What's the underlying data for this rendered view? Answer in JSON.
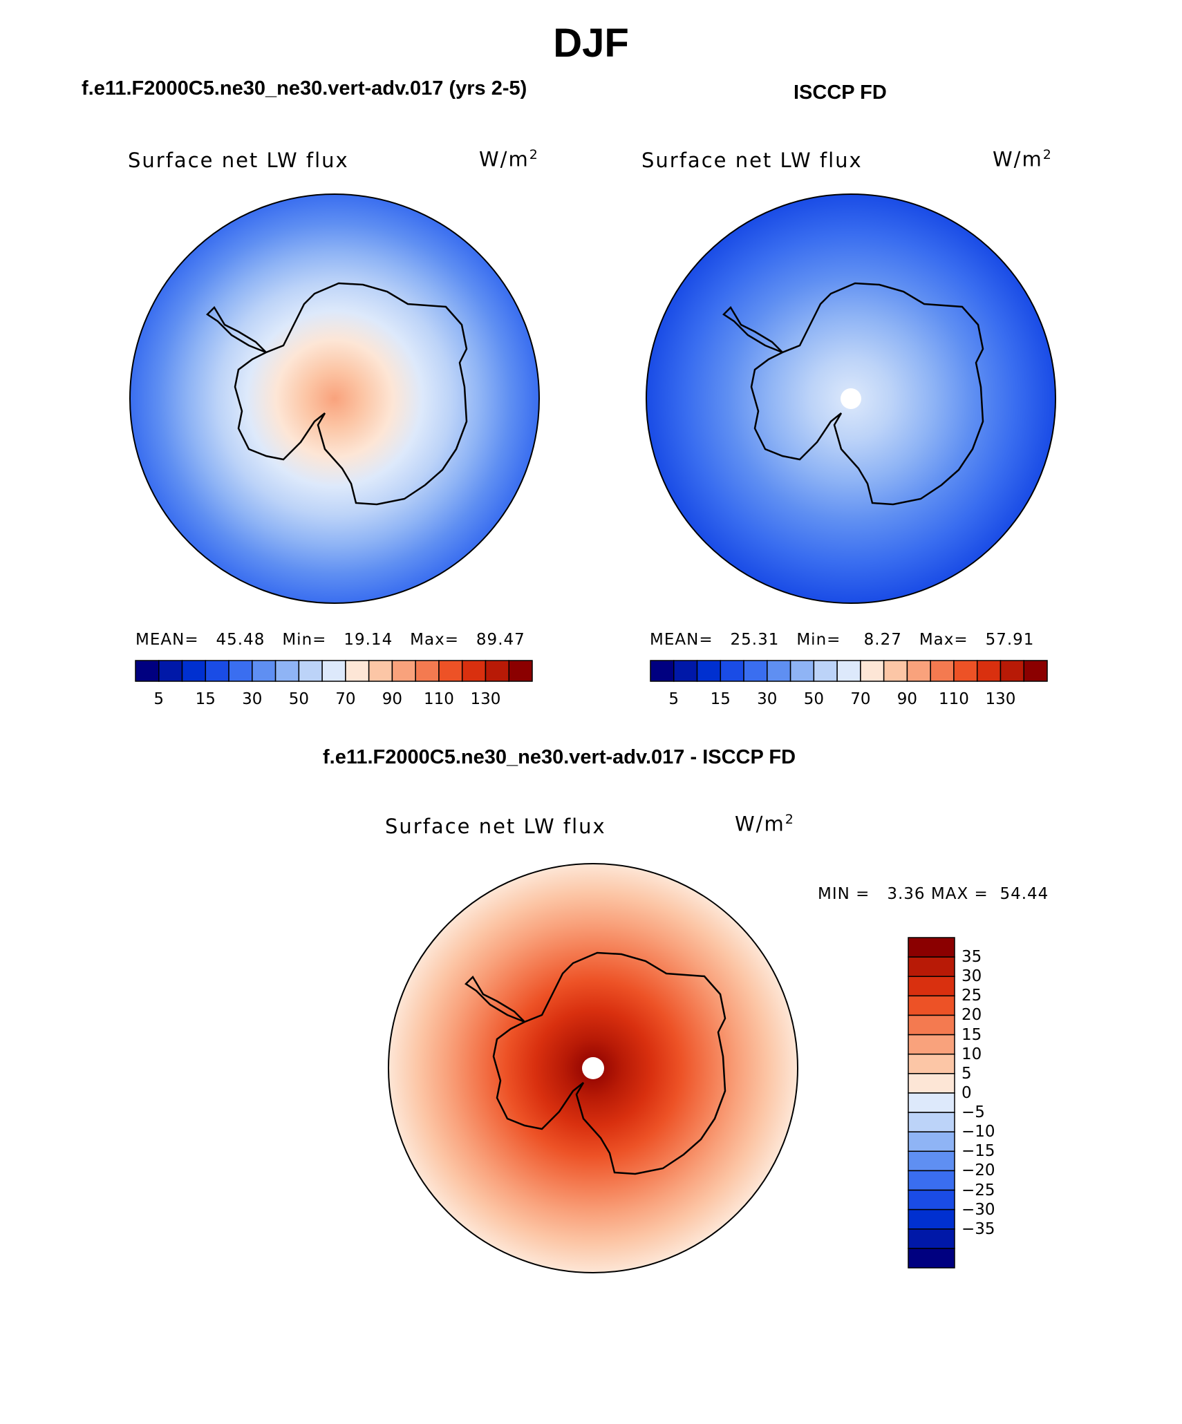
{
  "title": "DJF",
  "colors": {
    "blue_red_16": [
      "#000080",
      "#0018a8",
      "#0030d0",
      "#1a4ce6",
      "#3a6ef0",
      "#5f8ff2",
      "#8fb4f5",
      "#bcd3f8",
      "#dde9fb",
      "#fde6d6",
      "#fcc6a6",
      "#f9a27c",
      "#f47a50",
      "#ed5226",
      "#d9300f",
      "#b81a06",
      "#8b0000"
    ],
    "model_stops": [
      "#3a6ef0",
      "#5f8ff2",
      "#8fb4f5",
      "#bcd3f8",
      "#dde9fb",
      "#fde6d6",
      "#fcc6a6",
      "#f9a27c"
    ],
    "obs_stops": [
      "#1a4ce6",
      "#3a6ef0",
      "#5f8ff2",
      "#8fb4f5",
      "#bcd3f8",
      "#dde9fb"
    ],
    "diff_stops": [
      "#fde6d6",
      "#fcc6a6",
      "#f9a27c",
      "#f47a50",
      "#ed5226",
      "#d9300f",
      "#b81a06",
      "#8b0000"
    ]
  },
  "panels": {
    "model": {
      "case_title": "f.e11.F2000C5.ne30_ne30.vert-adv.017 (yrs 2-5)",
      "variable": "Surface net LW flux",
      "units_base": "W/m",
      "units_exp": "2",
      "mean_label": "MEAN=",
      "mean": "45.48",
      "min_label": "Min=",
      "min": "19.14",
      "max_label": "Max=",
      "max": "89.47"
    },
    "obs": {
      "case_title": "ISCCP FD",
      "variable": "Surface net LW flux",
      "units_base": "W/m",
      "units_exp": "2",
      "mean_label": "MEAN=",
      "mean": "25.31",
      "min_label": "Min=",
      "min": "8.27",
      "max_label": "Max=",
      "max": "57.91"
    },
    "diff": {
      "case_title": "f.e11.F2000C5.ne30_ne30.vert-adv.017 - ISCCP FD",
      "variable": "Surface net LW flux",
      "units_base": "W/m",
      "units_exp": "2",
      "min_label": "MIN =",
      "min": "3.36",
      "max_label": "MAX =",
      "max": "54.44"
    }
  },
  "colorbar_horizontal": {
    "ticks": [
      "5",
      "15",
      "30",
      "50",
      "70",
      "90",
      "110",
      "130"
    ]
  },
  "colorbar_vertical": {
    "ticks": [
      "35",
      "30",
      "25",
      "20",
      "15",
      "10",
      "5",
      "0",
      "−5",
      "−10",
      "−15",
      "−20",
      "−25",
      "−30",
      "−35"
    ]
  }
}
